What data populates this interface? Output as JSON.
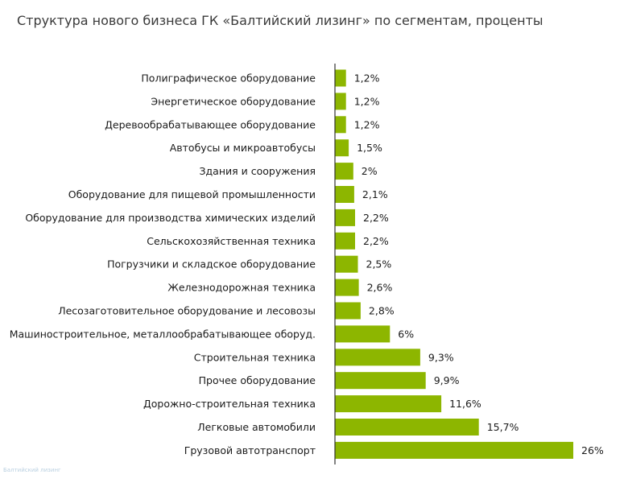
{
  "chart_data": {
    "type": "bar",
    "orientation": "horizontal",
    "title": "Структура нового бизнеса ГК «Балтийский лизинг» по сегментам, проценты",
    "categories": [
      "Полиграфическое оборудование",
      "Энергетическое оборудование",
      "Деревообрабатывающее оборудование",
      "Автобусы и микроавтобусы",
      "Здания и сооружения",
      "Оборудование для пищевой промышленности",
      "Оборудование для производства химических изделий",
      "Сельскохозяйственная техника",
      "Погрузчики и складское оборудование",
      "Железнодорожная техника",
      "Лесозаготовительное оборудование и лесовозы",
      "Машиностроительное, металлообрабатывающее оборуд.",
      "Строительная техника",
      "Прочее оборудование",
      "Дорожно-строительная техника",
      "Легковые автомобили",
      "Грузовой автотранспорт"
    ],
    "values": [
      1.2,
      1.2,
      1.2,
      1.5,
      2,
      2.1,
      2.2,
      2.2,
      2.5,
      2.6,
      2.8,
      6,
      9.3,
      9.9,
      11.6,
      15.7,
      26
    ],
    "value_labels": [
      "1,2%",
      "1,2%",
      "1,2%",
      "1,5%",
      "2%",
      "2,1%",
      "2,2%",
      "2,2%",
      "2,5%",
      "2,6%",
      "2,8%",
      "6%",
      "9,3%",
      "9,9%",
      "11,6%",
      "15,7%",
      "26%"
    ],
    "xlim": [
      0,
      26
    ],
    "bar_color": "#8db600",
    "axis_color": "#333333",
    "grid": false,
    "legend": "none"
  },
  "watermark": "Балтийский лизинг"
}
